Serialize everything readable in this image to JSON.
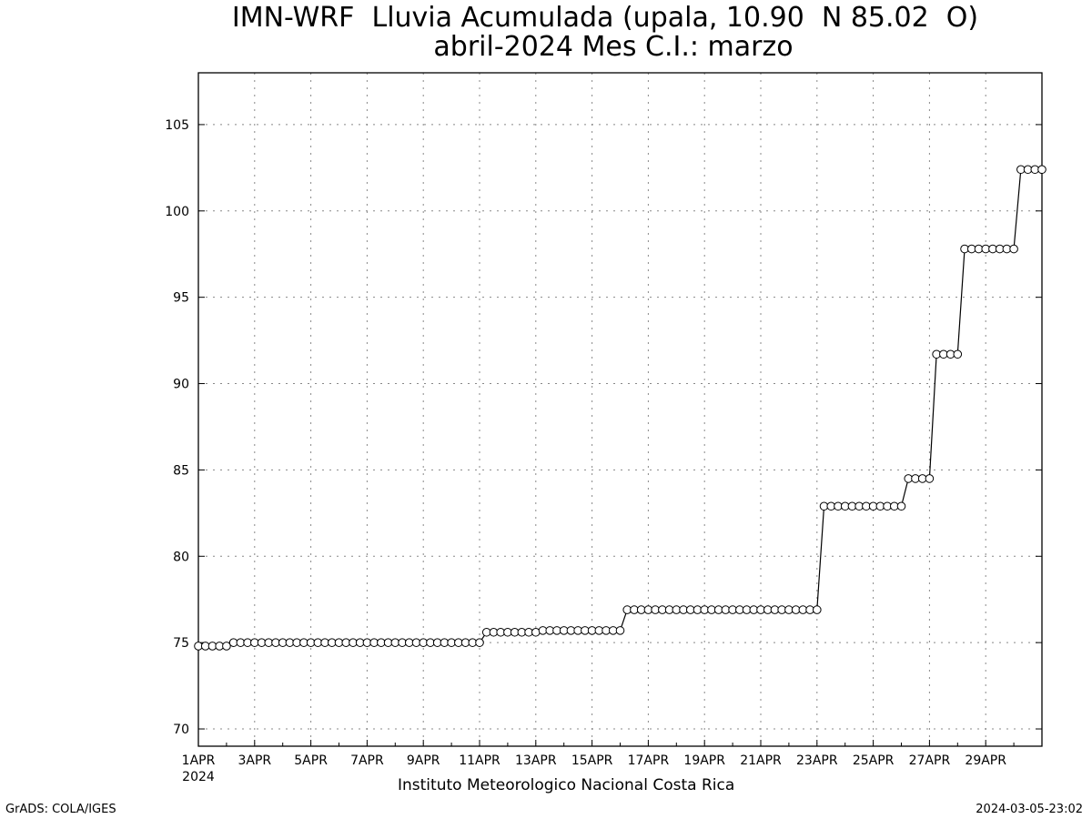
{
  "chart_data": {
    "type": "line",
    "title": "IMN-WRF  Lluvia Acumulada (upala, 10.90  N 85.02  O)",
    "subtitle": "abril-2024 Mes C.I.: marzo",
    "xlabel": "",
    "ylabel": "",
    "ylim": [
      69,
      108
    ],
    "y_ticks": [
      70,
      75,
      80,
      85,
      90,
      95,
      100,
      105
    ],
    "x_ticks": [
      "1APR",
      "3APR",
      "5APR",
      "7APR",
      "9APR",
      "11APR",
      "13APR",
      "15APR",
      "17APR",
      "19APR",
      "21APR",
      "23APR",
      "25APR",
      "27APR",
      "29APR"
    ],
    "x_year_label": "2024",
    "grid": true,
    "marker": "open-circle",
    "series": [
      {
        "segments": [
          {
            "day_start": 1.0,
            "day_end": 2.0,
            "value": 74.8,
            "step": 0.25
          },
          {
            "day_start": 2.25,
            "day_end": 11.0,
            "value": 75.0,
            "step": 0.25
          },
          {
            "day_start": 11.25,
            "day_end": 13.0,
            "value": 75.6,
            "step": 0.25
          },
          {
            "day_start": 13.25,
            "day_end": 16.0,
            "value": 75.7,
            "step": 0.25
          },
          {
            "day_start": 16.25,
            "day_end": 23.0,
            "value": 76.9,
            "step": 0.25
          },
          {
            "day_start": 23.25,
            "day_end": 26.0,
            "value": 82.9,
            "step": 0.25
          },
          {
            "day_start": 26.25,
            "day_end": 27.0,
            "value": 84.5,
            "step": 0.25
          },
          {
            "day_start": 27.25,
            "day_end": 28.0,
            "value": 91.7,
            "step": 0.25
          },
          {
            "day_start": 28.25,
            "day_end": 30.0,
            "value": 97.8,
            "step": 0.25
          },
          {
            "day_start": 30.25,
            "day_end": 31.0,
            "value": 102.4,
            "step": 0.25
          }
        ]
      }
    ]
  },
  "footer": {
    "institution": "Instituto Meteorologico Nacional Costa Rica",
    "credit_left": "GrADS: COLA/IGES",
    "credit_right": "2024-03-05-23:02"
  }
}
